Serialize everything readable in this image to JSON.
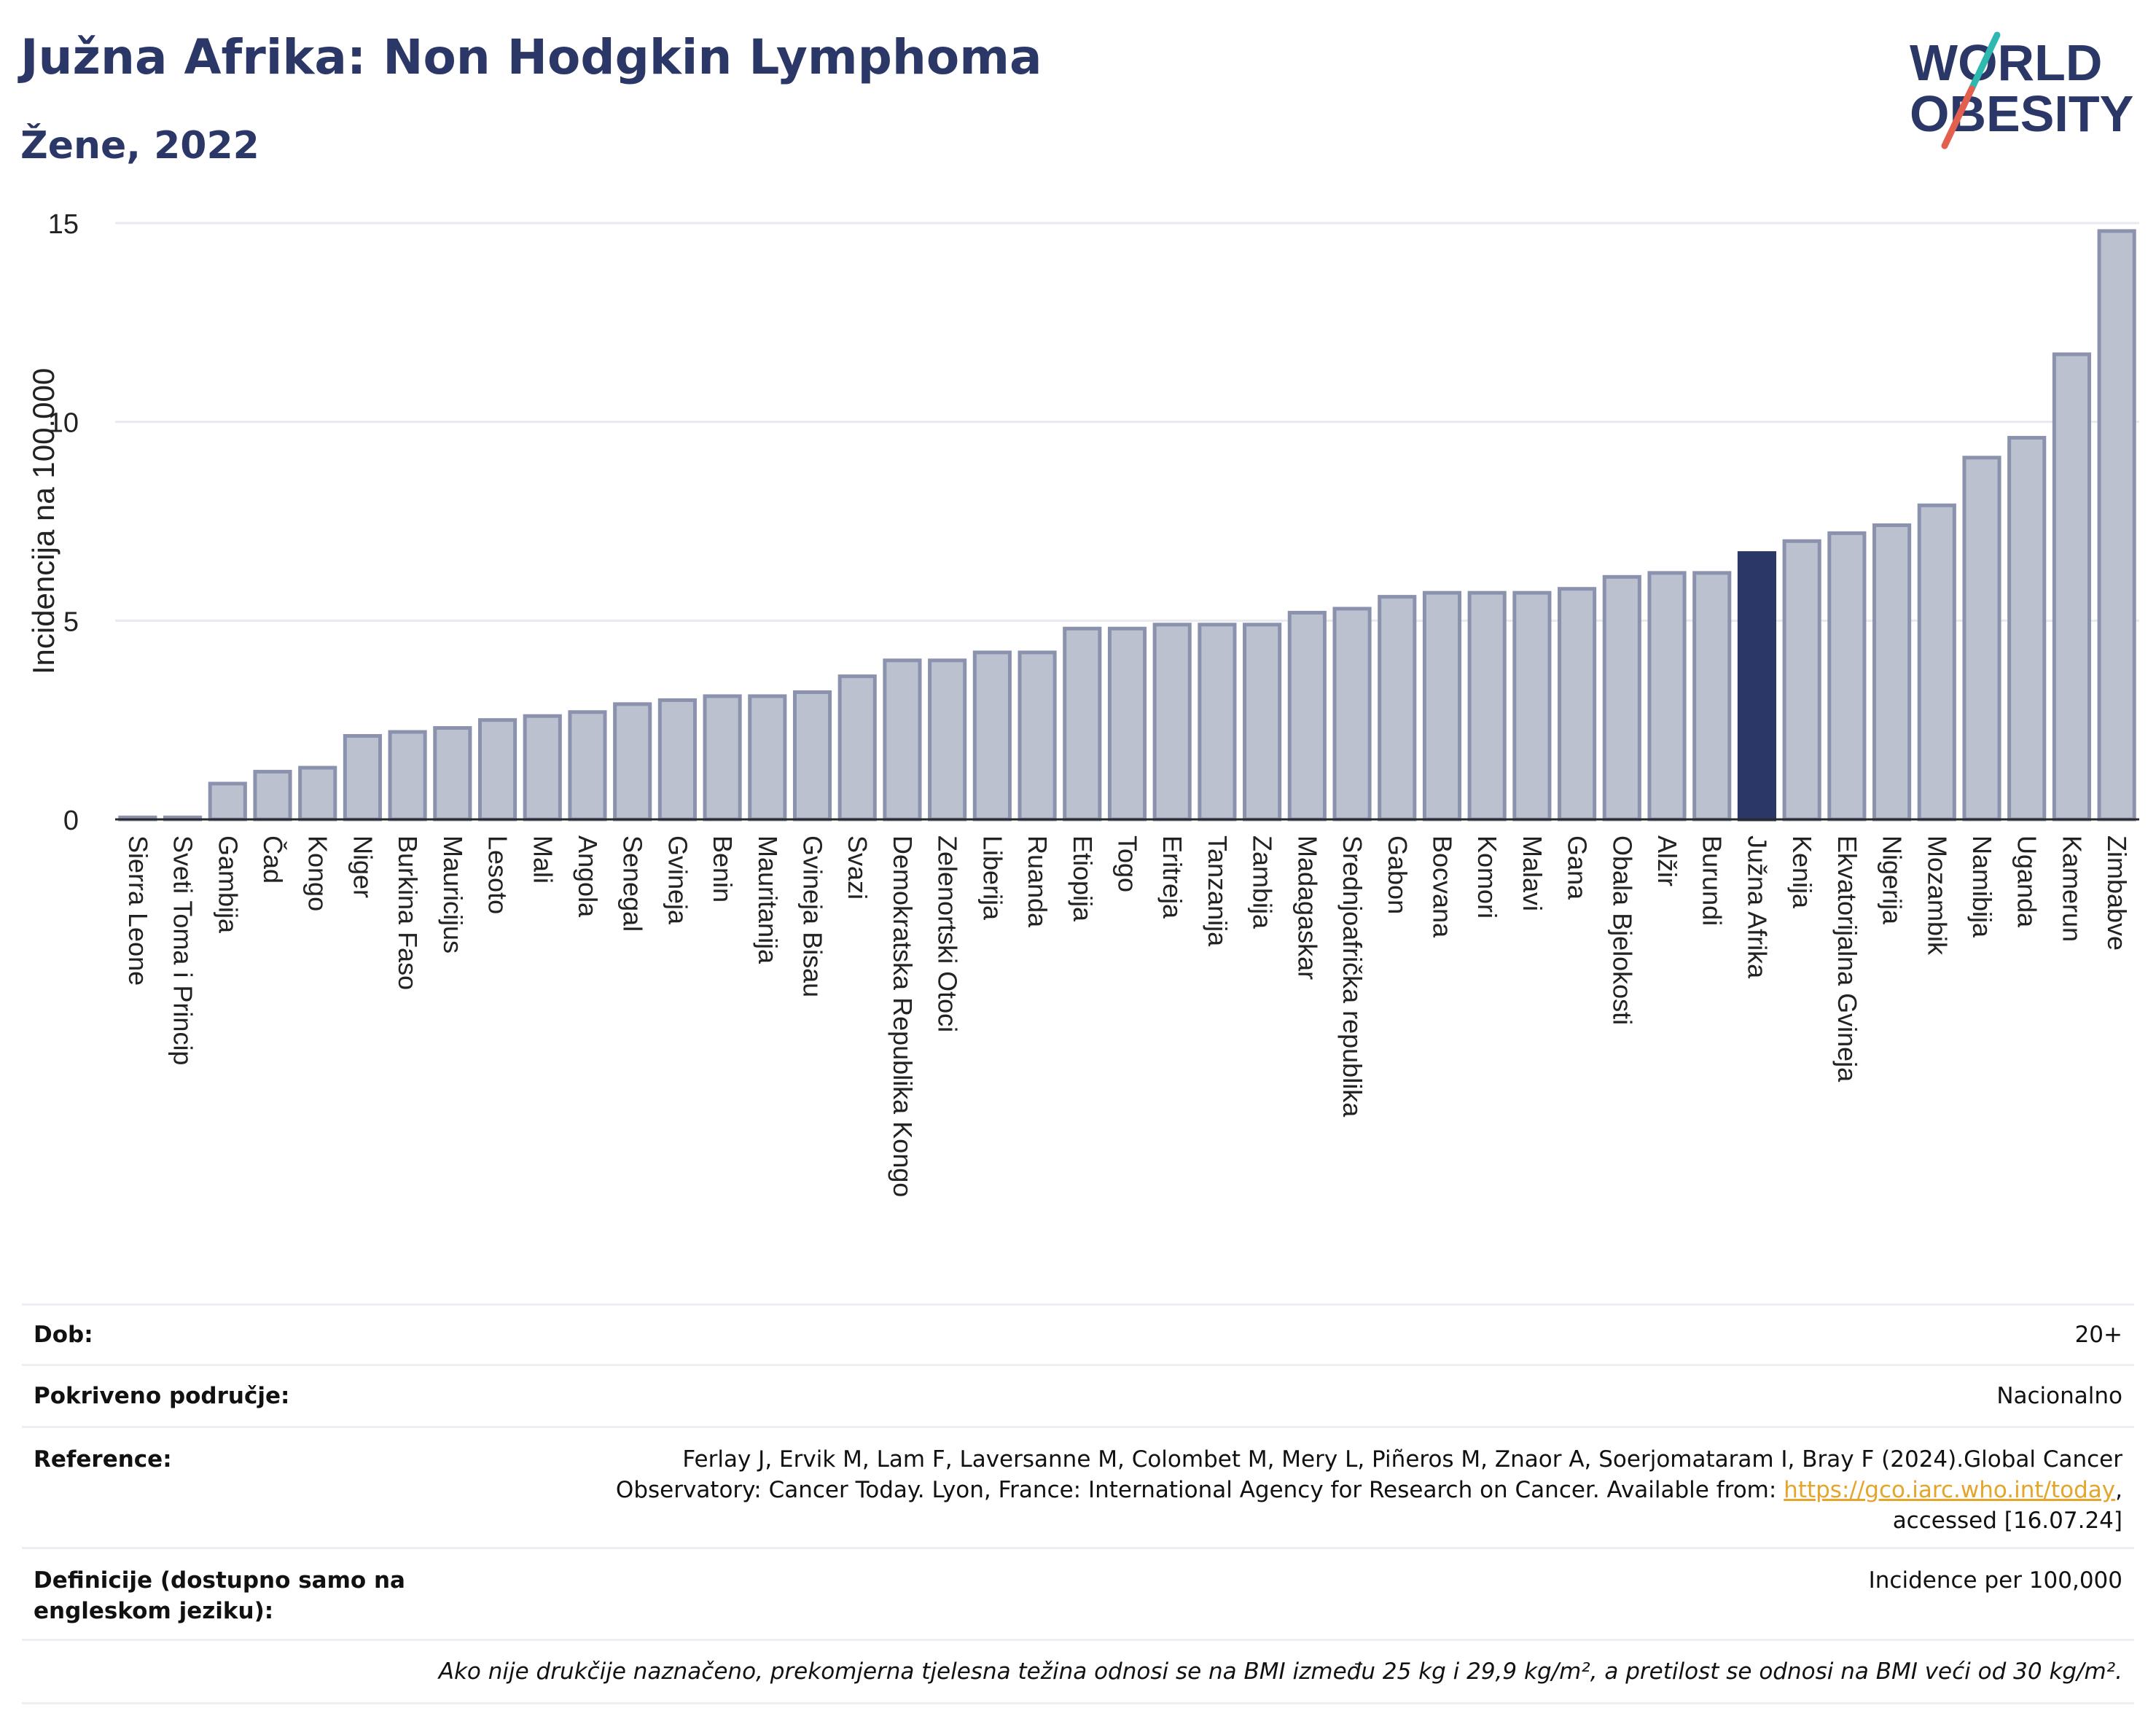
{
  "header": {
    "title": "Južna Afrika: Non Hodgkin Lymphoma",
    "subtitle": "Žene, 2022"
  },
  "logo": {
    "line1": "WORLD",
    "line2": "OBESITY"
  },
  "colors": {
    "bar": "#bcc1d0",
    "bar_border": "#8b92ad",
    "highlight": "#2b3766",
    "text_title": "#2b3766"
  },
  "chart_data": {
    "type": "bar",
    "categories": [
      "Sierra Leone",
      "Sveti Toma i Princip",
      "Gambija",
      "Čad",
      "Kongo",
      "Niger",
      "Burkina Faso",
      "Mauricijus",
      "Lesoto",
      "Mali",
      "Angola",
      "Senegal",
      "Gvineja",
      "Benin",
      "Mauritanija",
      "Gvineja Bisau",
      "Svazi",
      "Demokratska Republika Kongo",
      "Zelenortski Otoci",
      "Liberija",
      "Ruanda",
      "Etiopija",
      "Togo",
      "Eritreja",
      "Tanzanija",
      "Zambija",
      "Madagaskar",
      "Srednjoafrička republika",
      "Gabon",
      "Bocvana",
      "Komori",
      "Malavi",
      "Gana",
      "Obala Bjelokosti",
      "Alžir",
      "Burundi",
      "Južna Afrika",
      "Kenija",
      "Ekvatorijalna Gvineja",
      "Nigerija",
      "Mozambik",
      "Namibija",
      "Uganda",
      "Kamerun",
      "Zimbabve"
    ],
    "values": [
      0.05,
      0.05,
      0.9,
      1.2,
      1.3,
      2.1,
      2.2,
      2.3,
      2.5,
      2.6,
      2.7,
      2.9,
      3.0,
      3.1,
      3.1,
      3.2,
      3.6,
      4.0,
      4.0,
      4.2,
      4.2,
      4.8,
      4.8,
      4.9,
      4.9,
      4.9,
      5.2,
      5.3,
      5.6,
      5.7,
      5.7,
      5.7,
      5.8,
      6.1,
      6.2,
      6.2,
      6.7,
      7.0,
      7.2,
      7.4,
      7.9,
      9.1,
      9.6,
      11.7,
      14.8
    ],
    "highlight": "Južna Afrika",
    "ylabel": "Incidencija na 100.000",
    "ylim": [
      0,
      15
    ],
    "yticks": [
      0,
      5,
      10,
      15
    ],
    "grid": true
  },
  "info": {
    "age_label": "Dob:",
    "age_value": "20+",
    "coverage_label": "Pokriveno područje:",
    "coverage_value": "Nacionalno",
    "ref_label": "Reference:",
    "ref_line1": "Ferlay J, Ervik M, Lam F, Laversanne M, Colombet M, Mery L, Piñeros M, Znaor A, Soerjomataram I, Bray F (2024).Global Cancer",
    "ref_line2": "Observatory: Cancer Today. Lyon, France: International Agency for Research on Cancer. Available from: ",
    "ref_link": "https://gco.iarc.who.int/today",
    "ref_line2_end": ",",
    "ref_line3": "accessed [16.07.24]",
    "def_label": "Definicije (dostupno samo na engleskom jeziku):",
    "def_value": "Incidence per 100,000",
    "note": "Ako nije drukčije naznačeno, prekomjerna tjelesna težina odnosi se na BMI između 25 kg i 29,9 kg/m², a pretilost se odnosi na BMI veći od 30 kg/m²."
  }
}
